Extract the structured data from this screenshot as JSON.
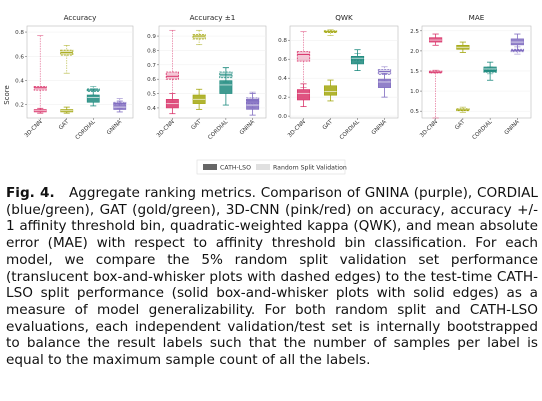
{
  "figure": {
    "ylabel": "Score",
    "models": [
      "3D-CNN",
      "GAT",
      "CORDIAL",
      "GNINA"
    ],
    "colors": {
      "3D-CNN": "#d9356b",
      "GAT": "#a3a70e",
      "CORDIAL": "#1d8a7e",
      "GNINA": "#7f6bc0"
    },
    "legend": {
      "solid": "CATH-LSO",
      "faded": "Random Split Validation"
    }
  },
  "chart_data": [
    {
      "type": "box",
      "title": "Accuracy",
      "ylim": [
        0.09,
        0.85
      ],
      "yticks": [
        0.2,
        0.4,
        0.6,
        0.8
      ],
      "ytick_labels": [
        "0.2",
        "0.4",
        "0.6",
        "0.8"
      ],
      "categories": [
        "3D-CNN",
        "GAT",
        "CORDIAL",
        "GNINA"
      ],
      "cath_lso": [
        {
          "min": 0.13,
          "q1": 0.14,
          "median": 0.15,
          "q3": 0.16,
          "max": 0.17
        },
        {
          "min": 0.13,
          "q1": 0.14,
          "median": 0.15,
          "q3": 0.16,
          "max": 0.18
        },
        {
          "min": 0.19,
          "q1": 0.22,
          "median": 0.26,
          "q3": 0.28,
          "max": 0.33
        },
        {
          "min": 0.14,
          "q1": 0.16,
          "median": 0.18,
          "q3": 0.2,
          "max": 0.23
        }
      ],
      "random_split": [
        {
          "min": 0.15,
          "q1": 0.32,
          "median": 0.34,
          "q3": 0.35,
          "max": 0.77
        },
        {
          "min": 0.46,
          "q1": 0.61,
          "median": 0.63,
          "q3": 0.65,
          "max": 0.69
        },
        {
          "min": 0.28,
          "q1": 0.31,
          "median": 0.32,
          "q3": 0.33,
          "max": 0.35
        },
        {
          "min": 0.17,
          "q1": 0.2,
          "median": 0.21,
          "q3": 0.22,
          "max": 0.25
        }
      ]
    },
    {
      "type": "box",
      "title": "Accuracy ±1",
      "ylim": [
        0.33,
        0.97
      ],
      "yticks": [
        0.4,
        0.5,
        0.6,
        0.7,
        0.8,
        0.9
      ],
      "ytick_labels": [
        "0.4",
        "0.5",
        "0.6",
        "0.7",
        "0.8",
        "0.9"
      ],
      "categories": [
        "3D-CNN",
        "GAT",
        "CORDIAL",
        "GNINA"
      ],
      "cath_lso": [
        {
          "min": 0.36,
          "q1": 0.4,
          "median": 0.43,
          "q3": 0.46,
          "max": 0.5
        },
        {
          "min": 0.39,
          "q1": 0.43,
          "median": 0.46,
          "q3": 0.49,
          "max": 0.53
        },
        {
          "min": 0.42,
          "q1": 0.5,
          "median": 0.56,
          "q3": 0.59,
          "max": 0.68
        },
        {
          "min": 0.35,
          "q1": 0.39,
          "median": 0.42,
          "q3": 0.46,
          "max": 0.5
        }
      ],
      "random_split": [
        {
          "min": 0.44,
          "q1": 0.6,
          "median": 0.62,
          "q3": 0.65,
          "max": 0.94
        },
        {
          "min": 0.84,
          "q1": 0.88,
          "median": 0.9,
          "q3": 0.91,
          "max": 0.94
        },
        {
          "min": 0.58,
          "q1": 0.61,
          "median": 0.63,
          "q3": 0.65,
          "max": 0.68
        },
        {
          "min": 0.4,
          "q1": 0.43,
          "median": 0.45,
          "q3": 0.47,
          "max": 0.51
        }
      ]
    },
    {
      "type": "box",
      "title": "QWK",
      "ylim": [
        -0.02,
        0.95
      ],
      "yticks": [
        0.0,
        0.2,
        0.4,
        0.6,
        0.8
      ],
      "ytick_labels": [
        "0.0",
        "0.2",
        "0.4",
        "0.6",
        "0.8"
      ],
      "categories": [
        "3D-CNN",
        "GAT",
        "CORDIAL",
        "GNINA"
      ],
      "cath_lso": [
        {
          "min": 0.1,
          "q1": 0.17,
          "median": 0.24,
          "q3": 0.28,
          "max": 0.34
        },
        {
          "min": 0.16,
          "q1": 0.22,
          "median": 0.26,
          "q3": 0.32,
          "max": 0.38
        },
        {
          "min": 0.48,
          "q1": 0.55,
          "median": 0.61,
          "q3": 0.63,
          "max": 0.7
        },
        {
          "min": 0.2,
          "q1": 0.3,
          "median": 0.36,
          "q3": 0.39,
          "max": 0.45
        }
      ],
      "random_split": [
        {
          "min": 0.3,
          "q1": 0.58,
          "median": 0.65,
          "q3": 0.68,
          "max": 0.89
        },
        {
          "min": 0.85,
          "q1": 0.88,
          "median": 0.89,
          "q3": 0.9,
          "max": 0.91
        },
        {
          "min": 0.56,
          "q1": 0.59,
          "median": 0.61,
          "q3": 0.63,
          "max": 0.66
        },
        {
          "min": 0.37,
          "q1": 0.44,
          "median": 0.47,
          "q3": 0.49,
          "max": 0.52
        }
      ]
    },
    {
      "type": "box",
      "title": "MAE",
      "ylim": [
        0.33,
        2.62
      ],
      "yticks": [
        0.5,
        1.0,
        1.5,
        2.0,
        2.5
      ],
      "ytick_labels": [
        "0.5",
        "1.0",
        "1.5",
        "2.0",
        "2.5"
      ],
      "categories": [
        "3D-CNN",
        "GAT",
        "CORDIAL",
        "GNINA"
      ],
      "cath_lso": [
        {
          "min": 2.14,
          "q1": 2.22,
          "median": 2.27,
          "q3": 2.33,
          "max": 2.42
        },
        {
          "min": 1.96,
          "q1": 2.04,
          "median": 2.09,
          "q3": 2.14,
          "max": 2.22
        },
        {
          "min": 1.27,
          "q1": 1.48,
          "median": 1.55,
          "q3": 1.6,
          "max": 1.72
        },
        {
          "min": 2.02,
          "q1": 2.15,
          "median": 2.22,
          "q3": 2.3,
          "max": 2.42
        }
      ],
      "random_split": [
        {
          "min": 0.33,
          "q1": 1.45,
          "median": 1.47,
          "q3": 1.5,
          "max": 1.52
        },
        {
          "min": 0.47,
          "q1": 0.51,
          "median": 0.53,
          "q3": 0.56,
          "max": 0.6
        },
        {
          "min": 1.43,
          "q1": 1.47,
          "median": 1.51,
          "q3": 1.54,
          "max": 1.6
        },
        {
          "min": 1.92,
          "q1": 1.98,
          "median": 2.01,
          "q3": 2.04,
          "max": 2.1
        }
      ]
    }
  ],
  "caption": {
    "label": "Fig. 4.",
    "text": "Aggregate ranking metrics. Comparison of GNINA (purple), CORDIAL (blue/green), GAT (gold/green), 3D-CNN (pink/red) on accuracy, accuracy +/- 1 affinity threshold bin, quadratic-weighted kappa (QWK), and mean absolute error (MAE) with respect to affinity threshold bin classification. For each model, we compare the 5% random split validation set performance (translucent box-and-whisker plots with dashed edges) to the test-time CATH-LSO split performance (solid box-and-whisker plots with solid edges) as a measure of model generalizability. For both random split and CATH-LSO evaluations, each independent validation/test set is internally bootstrapped to balance the result labels such that the number of samples per label is equal to the maximum sample count of all the labels."
  }
}
